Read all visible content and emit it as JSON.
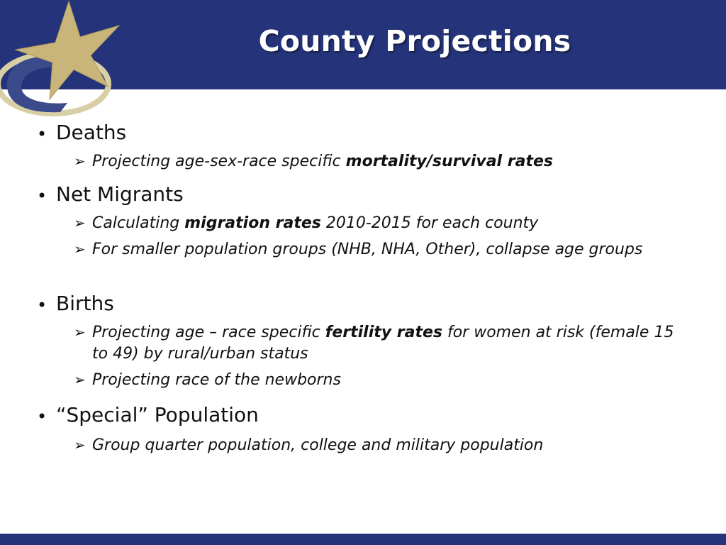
{
  "slide": {
    "title": "County Projections"
  },
  "bullets": [
    {
      "label": "Deaths",
      "sub": [
        {
          "pre": "Projecting age-sex-race specific ",
          "bold": "mortality/survival rates",
          "post": ""
        }
      ]
    },
    {
      "label": "Net Migrants",
      "sub": [
        {
          "pre": "Calculating ",
          "bold": "migration rates",
          "post": " 2010-2015 for each county"
        },
        {
          "pre": "For smaller population groups (NHB, NHA, Other), collapse age groups",
          "bold": "",
          "post": ""
        }
      ]
    },
    {
      "label": "Births",
      "sub": [
        {
          "pre": "Projecting age – race specific ",
          "bold": "fertility rates",
          "post": " for women at risk (female 15 to 49) by rural/urban status"
        },
        {
          "pre": "Projecting race of the newborns",
          "bold": "",
          "post": ""
        }
      ]
    },
    {
      "label": "“Special” Population",
      "sub": [
        {
          "pre": "Group quarter population, college and military population",
          "bold": "",
          "post": ""
        }
      ]
    }
  ],
  "glyphs": {
    "bullet": "•",
    "arrow": "➢"
  },
  "icons": {
    "logo": "star-swoosh-logo"
  },
  "colors": {
    "header": "#25347a",
    "star": "#c9b57a",
    "swoosh": "#3a4a8a"
  }
}
